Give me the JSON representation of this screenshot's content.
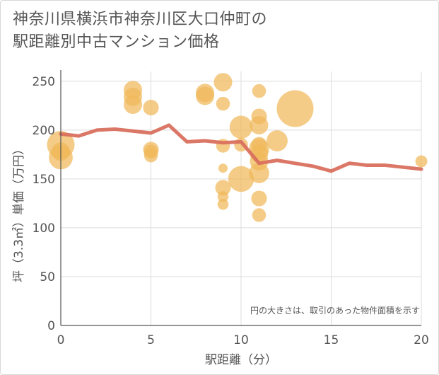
{
  "title_lines": [
    "神奈川県横浜市神奈川区大口仲町の",
    "駅距離別中古マンション価格"
  ],
  "chart_data": {
    "type": "scatter",
    "title": "神奈川県横浜市神奈川区大口仲町の駅距離別中古マンション価格",
    "xlabel": "駅距離（分）",
    "ylabel": "坪（3.3㎡）単価（万円）",
    "xlim": [
      0,
      20
    ],
    "ylim": [
      0,
      260
    ],
    "xticks": [
      0,
      5,
      10,
      15,
      20
    ],
    "yticks": [
      0,
      50,
      100,
      150,
      200,
      250
    ],
    "grid": true,
    "note": "円の大きさは、取引のあった物件面積を示す",
    "colors": {
      "bubble": "#f0b85a",
      "line": "#d9705e",
      "grid": "#dcdcdc",
      "axis": "#555555"
    },
    "bubbles": [
      {
        "x": 0,
        "y": 185,
        "r": 3
      },
      {
        "x": 0,
        "y": 172,
        "r": 2.6
      },
      {
        "x": 0,
        "y": 178,
        "r": 2
      },
      {
        "x": 4,
        "y": 241,
        "r": 2
      },
      {
        "x": 4,
        "y": 234,
        "r": 2
      },
      {
        "x": 4,
        "y": 226,
        "r": 2
      },
      {
        "x": 5,
        "y": 223,
        "r": 1.7
      },
      {
        "x": 5,
        "y": 180,
        "r": 1.7
      },
      {
        "x": 5,
        "y": 178,
        "r": 1.5
      },
      {
        "x": 5,
        "y": 174,
        "r": 1.5
      },
      {
        "x": 8,
        "y": 238,
        "r": 2
      },
      {
        "x": 8,
        "y": 235,
        "r": 2
      },
      {
        "x": 9,
        "y": 249,
        "r": 2
      },
      {
        "x": 9,
        "y": 227,
        "r": 1.5
      },
      {
        "x": 9,
        "y": 184,
        "r": 1.5
      },
      {
        "x": 9,
        "y": 161,
        "r": 1
      },
      {
        "x": 9,
        "y": 141,
        "r": 1.7
      },
      {
        "x": 9,
        "y": 132,
        "r": 1.2
      },
      {
        "x": 9,
        "y": 124,
        "r": 1.2
      },
      {
        "x": 10,
        "y": 203,
        "r": 2.5
      },
      {
        "x": 10,
        "y": 185,
        "r": 1.5
      },
      {
        "x": 10,
        "y": 150,
        "r": 2.8
      },
      {
        "x": 11,
        "y": 240,
        "r": 1.5
      },
      {
        "x": 11,
        "y": 214,
        "r": 1.7
      },
      {
        "x": 11,
        "y": 205,
        "r": 2
      },
      {
        "x": 11,
        "y": 185,
        "r": 1.7
      },
      {
        "x": 11,
        "y": 181,
        "r": 2.2
      },
      {
        "x": 11,
        "y": 176,
        "r": 2
      },
      {
        "x": 11,
        "y": 168,
        "r": 2
      },
      {
        "x": 11,
        "y": 156,
        "r": 2.2
      },
      {
        "x": 11,
        "y": 130,
        "r": 1.7
      },
      {
        "x": 11,
        "y": 113,
        "r": 1.5
      },
      {
        "x": 12,
        "y": 189,
        "r": 2.3
      },
      {
        "x": 13,
        "y": 222,
        "r": 4
      },
      {
        "x": 20,
        "y": 168,
        "r": 1.3
      }
    ],
    "line": {
      "x": [
        0,
        1,
        2,
        3,
        4,
        5,
        6,
        7,
        8,
        9,
        10,
        11,
        12,
        13,
        14,
        15,
        16,
        17,
        18,
        19,
        20
      ],
      "y": [
        196,
        194,
        200,
        201,
        199,
        197,
        205,
        188,
        189,
        187,
        188,
        166,
        169,
        166,
        163,
        158,
        166,
        164,
        164,
        162,
        160
      ]
    }
  }
}
